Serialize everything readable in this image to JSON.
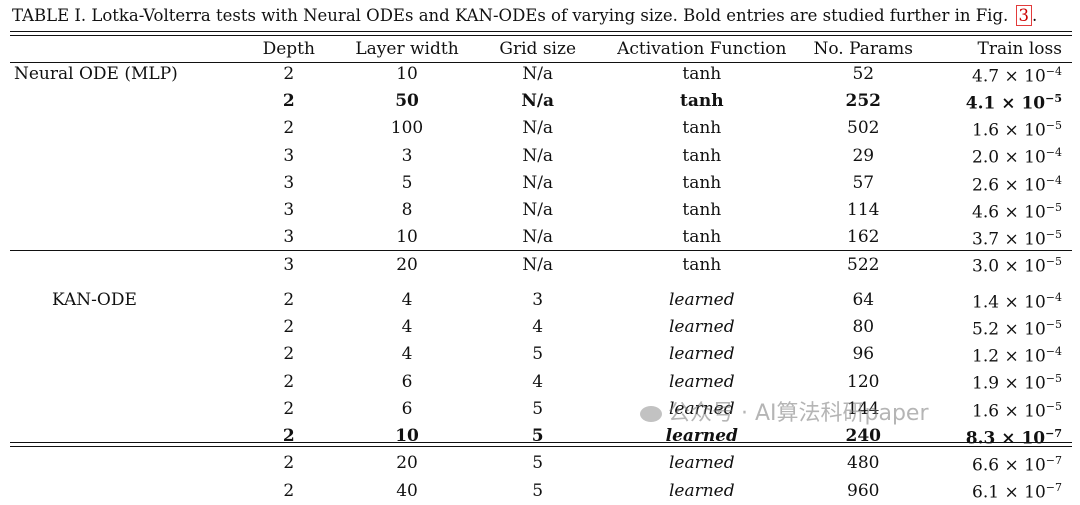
{
  "caption": {
    "text": "TABLE I. Lotka-Volterra tests with Neural ODEs and KAN-ODEs of varying size. Bold entries are studied further in Fig.",
    "figref": "3",
    "end": "."
  },
  "headers": [
    "",
    "Depth",
    "Layer width",
    "Grid size",
    "Activation Function",
    "No. Params",
    "Train loss"
  ],
  "sections": [
    {
      "label": "Neural ODE (MLP)",
      "rows": [
        {
          "depth": "2",
          "width": "10",
          "grid": "N/a",
          "activation": "tanh",
          "params": "52",
          "loss_mantissa": "4.7",
          "loss_exp": "−4",
          "bold": false
        },
        {
          "depth": "2",
          "width": "50",
          "grid": "N/a",
          "activation": "tanh",
          "params": "252",
          "loss_mantissa": "4.1",
          "loss_exp": "−5",
          "bold": true
        },
        {
          "depth": "2",
          "width": "100",
          "grid": "N/a",
          "activation": "tanh",
          "params": "502",
          "loss_mantissa": "1.6",
          "loss_exp": "−5",
          "bold": false
        },
        {
          "depth": "3",
          "width": "3",
          "grid": "N/a",
          "activation": "tanh",
          "params": "29",
          "loss_mantissa": "2.0",
          "loss_exp": "−4",
          "bold": false
        },
        {
          "depth": "3",
          "width": "5",
          "grid": "N/a",
          "activation": "tanh",
          "params": "57",
          "loss_mantissa": "2.6",
          "loss_exp": "−4",
          "bold": false
        },
        {
          "depth": "3",
          "width": "8",
          "grid": "N/a",
          "activation": "tanh",
          "params": "114",
          "loss_mantissa": "4.6",
          "loss_exp": "−5",
          "bold": false
        },
        {
          "depth": "3",
          "width": "10",
          "grid": "N/a",
          "activation": "tanh",
          "params": "162",
          "loss_mantissa": "3.7",
          "loss_exp": "−5",
          "bold": false
        },
        {
          "depth": "3",
          "width": "20",
          "grid": "N/a",
          "activation": "tanh",
          "params": "522",
          "loss_mantissa": "3.0",
          "loss_exp": "−5",
          "bold": false
        }
      ]
    },
    {
      "label": "KAN-ODE",
      "rows": [
        {
          "depth": "2",
          "width": "4",
          "grid": "3",
          "activation": "learned",
          "params": "64",
          "loss_mantissa": "1.4",
          "loss_exp": "−4",
          "bold": false
        },
        {
          "depth": "2",
          "width": "4",
          "grid": "4",
          "activation": "learned",
          "params": "80",
          "loss_mantissa": "5.2",
          "loss_exp": "−5",
          "bold": false
        },
        {
          "depth": "2",
          "width": "4",
          "grid": "5",
          "activation": "learned",
          "params": "96",
          "loss_mantissa": "1.2",
          "loss_exp": "−4",
          "bold": false
        },
        {
          "depth": "2",
          "width": "6",
          "grid": "4",
          "activation": "learned",
          "params": "120",
          "loss_mantissa": "1.9",
          "loss_exp": "−5",
          "bold": false
        },
        {
          "depth": "2",
          "width": "6",
          "grid": "5",
          "activation": "learned",
          "params": "144",
          "loss_mantissa": "1.6",
          "loss_exp": "−5",
          "bold": false
        },
        {
          "depth": "2",
          "width": "10",
          "grid": "5",
          "activation": "learned",
          "params": "240",
          "loss_mantissa": "8.3",
          "loss_exp": "−7",
          "bold": true
        },
        {
          "depth": "2",
          "width": "20",
          "grid": "5",
          "activation": "learned",
          "params": "480",
          "loss_mantissa": "6.6",
          "loss_exp": "−7",
          "bold": false
        },
        {
          "depth": "2",
          "width": "40",
          "grid": "5",
          "activation": "learned",
          "params": "960",
          "loss_mantissa": "6.1",
          "loss_exp": "−7",
          "bold": false
        }
      ]
    }
  ],
  "watermark": "公众号 · AI算法科研paper"
}
